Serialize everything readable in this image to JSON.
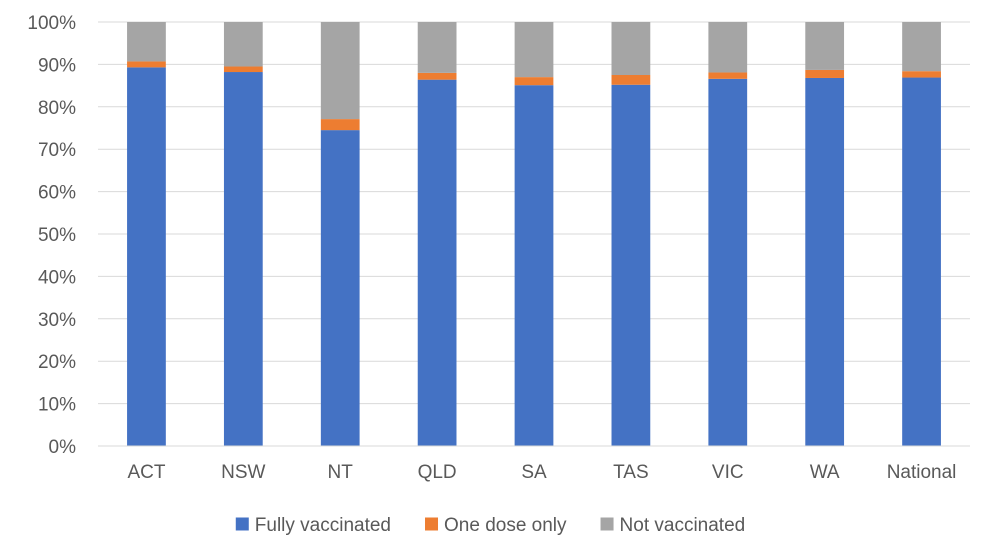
{
  "chart_data": {
    "type": "bar",
    "stacked": true,
    "categories": [
      "ACT",
      "NSW",
      "NT",
      "QLD",
      "SA",
      "TAS",
      "VIC",
      "WA",
      "National"
    ],
    "series": [
      {
        "name": "Fully vaccinated",
        "color": "#4472C4",
        "values": [
          89.3,
          88.2,
          74.5,
          86.4,
          85.1,
          85.2,
          86.6,
          86.8,
          86.9
        ]
      },
      {
        "name": "One dose only",
        "color": "#ED7D31",
        "values": [
          1.4,
          1.3,
          2.6,
          1.6,
          1.9,
          2.3,
          1.5,
          1.9,
          1.5
        ]
      },
      {
        "name": "Not vaccinated",
        "color": "#A5A5A5",
        "values": [
          9.3,
          10.5,
          22.9,
          12.0,
          13.0,
          12.5,
          11.9,
          11.3,
          11.6
        ]
      }
    ],
    "y_ticks": [
      "0%",
      "10%",
      "20%",
      "30%",
      "40%",
      "50%",
      "60%",
      "70%",
      "80%",
      "90%",
      "100%"
    ],
    "ylim": [
      0,
      100
    ],
    "y_unit": "%",
    "grid": true,
    "legend_position": "bottom"
  }
}
